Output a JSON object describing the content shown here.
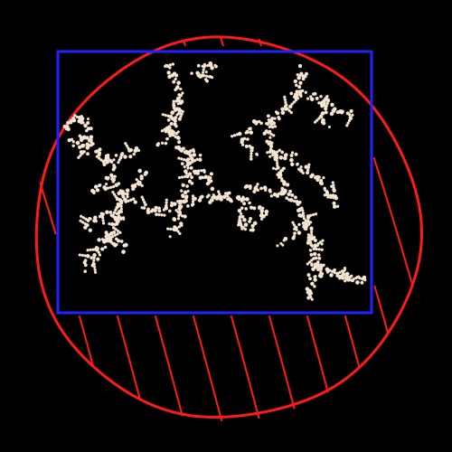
{
  "canvas": {
    "background": "#000000"
  },
  "circle": {
    "stroke_color": "#ff1a1a",
    "hatch_color": "#ff1a1a",
    "description_name": "bounding-circle"
  },
  "rectangle": {
    "stroke_color": "#2222ff",
    "description_name": "bounding-rectangle"
  },
  "cluster": {
    "fill_color": "#f7e9d7",
    "stroke_color": "#e8d4bc",
    "description_name": "dla-fractal-cluster"
  }
}
